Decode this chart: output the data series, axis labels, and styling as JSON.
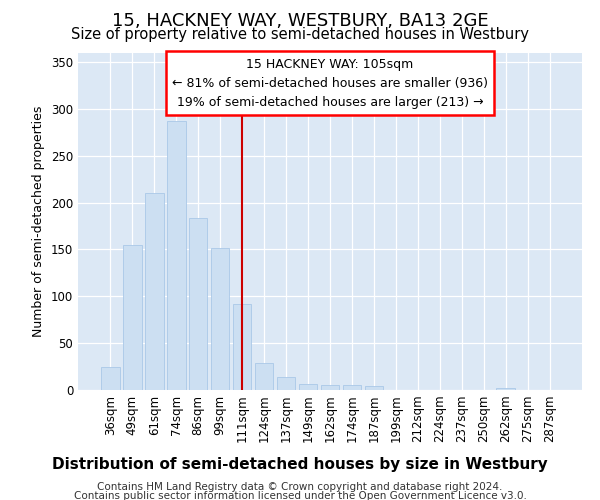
{
  "title": "15, HACKNEY WAY, WESTBURY, BA13 2GE",
  "subtitle": "Size of property relative to semi-detached houses in Westbury",
  "xlabel": "Distribution of semi-detached houses by size in Westbury",
  "ylabel": "Number of semi-detached properties",
  "categories": [
    "36sqm",
    "49sqm",
    "61sqm",
    "74sqm",
    "86sqm",
    "99sqm",
    "111sqm",
    "124sqm",
    "137sqm",
    "149sqm",
    "162sqm",
    "174sqm",
    "187sqm",
    "199sqm",
    "212sqm",
    "224sqm",
    "237sqm",
    "250sqm",
    "262sqm",
    "275sqm",
    "287sqm"
  ],
  "values": [
    25,
    155,
    210,
    287,
    183,
    152,
    92,
    29,
    14,
    6,
    5,
    5,
    4,
    0,
    0,
    0,
    0,
    0,
    2,
    0,
    0
  ],
  "bar_color": "#ccdff2",
  "bar_edge_color": "#aac8e8",
  "vline_color": "#cc0000",
  "annotation_title": "15 HACKNEY WAY: 105sqm",
  "annotation_line1": "← 81% of semi-detached houses are smaller (936)",
  "annotation_line2": "19% of semi-detached houses are larger (213) →",
  "ylim": [
    0,
    360
  ],
  "yticks": [
    0,
    50,
    100,
    150,
    200,
    250,
    300,
    350
  ],
  "footer_line1": "Contains HM Land Registry data © Crown copyright and database right 2024.",
  "footer_line2": "Contains public sector information licensed under the Open Government Licence v3.0.",
  "bg_color": "#ffffff",
  "plot_bg_color": "#dce8f5",
  "grid_color": "#ffffff",
  "title_fontsize": 13,
  "subtitle_fontsize": 10.5,
  "ylabel_fontsize": 9,
  "xlabel_fontsize": 11,
  "tick_fontsize": 8.5,
  "ann_fontsize": 9,
  "footer_fontsize": 7.5,
  "vline_x_pos": 6.0
}
